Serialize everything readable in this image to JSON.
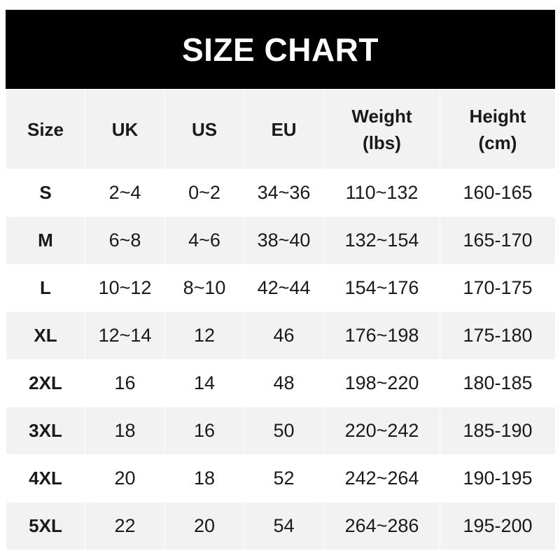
{
  "title": "SIZE CHART",
  "headers": [
    {
      "line1": "Size",
      "line2": ""
    },
    {
      "line1": "UK",
      "line2": ""
    },
    {
      "line1": "US",
      "line2": ""
    },
    {
      "line1": "EU",
      "line2": ""
    },
    {
      "line1": "Weight",
      "line2": "(lbs)"
    },
    {
      "line1": "Height",
      "line2": "(cm)"
    }
  ],
  "rows": [
    [
      "S",
      "2~4",
      "0~2",
      "34~36",
      "110~132",
      "160-165"
    ],
    [
      "M",
      "6~8",
      "4~6",
      "38~40",
      "132~154",
      "165-170"
    ],
    [
      "L",
      "10~12",
      "8~10",
      "42~44",
      "154~176",
      "170-175"
    ],
    [
      "XL",
      "12~14",
      "12",
      "46",
      "176~198",
      "175-180"
    ],
    [
      "2XL",
      "16",
      "14",
      "48",
      "198~220",
      "180-185"
    ],
    [
      "3XL",
      "18",
      "16",
      "50",
      "220~242",
      "185-190"
    ],
    [
      "4XL",
      "20",
      "18",
      "52",
      "242~264",
      "190-195"
    ],
    [
      "5XL",
      "22",
      "20",
      "54",
      "264~286",
      "195-200"
    ]
  ],
  "colors": {
    "header_bg": "#000000",
    "stripe": "#f2f2f2"
  }
}
